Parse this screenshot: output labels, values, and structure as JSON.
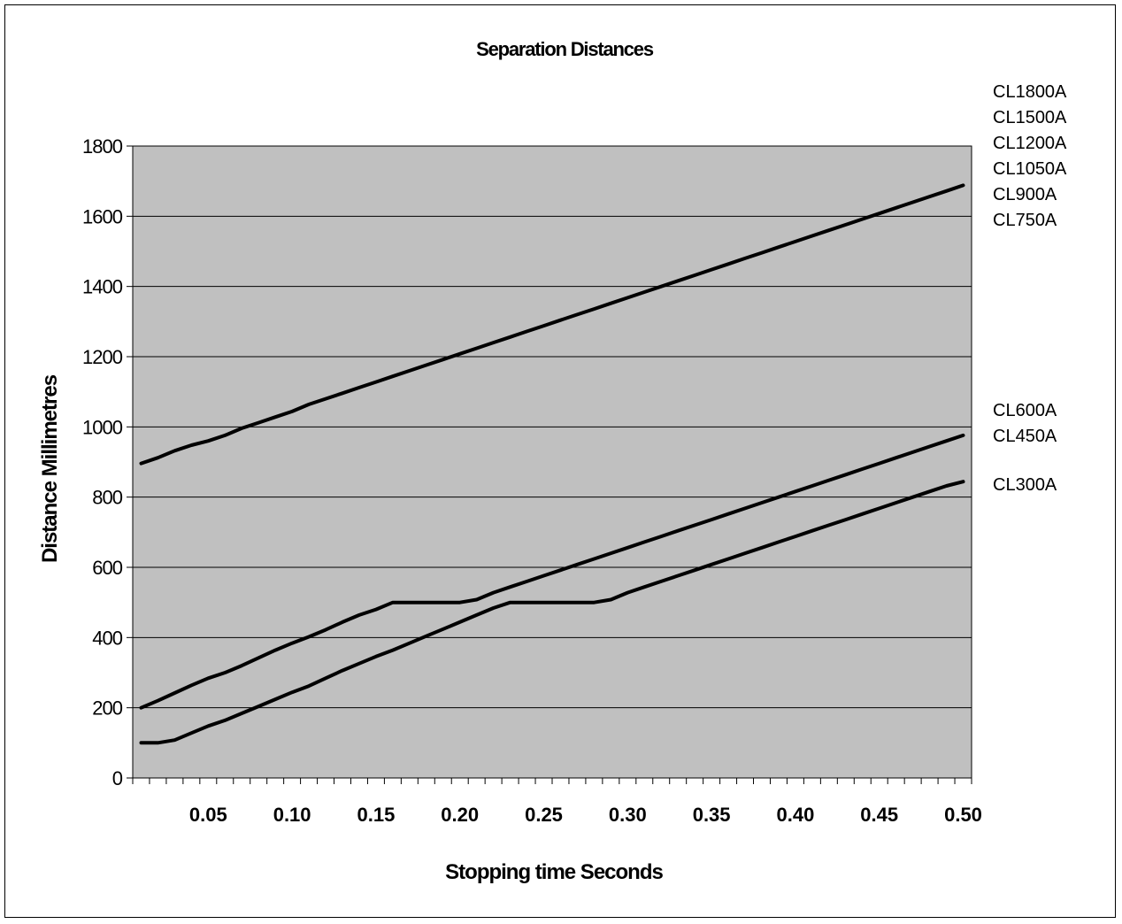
{
  "chart_data": {
    "type": "line",
    "title": "Separation Distances",
    "xlabel": "Stopping time Seconds",
    "ylabel": "Distance Millimetres",
    "xlim": [
      0.005,
      0.505
    ],
    "ylim": [
      0,
      1800
    ],
    "yticks": [
      0,
      200,
      400,
      600,
      800,
      1000,
      1200,
      1400,
      1600,
      1800
    ],
    "xticks": [
      0.05,
      0.1,
      0.15,
      0.2,
      0.25,
      0.3,
      0.35,
      0.4,
      0.45,
      0.5
    ],
    "xtick_labels": [
      "0.05",
      "0.10",
      "0.15",
      "0.20",
      "0.25",
      "0.30",
      "0.35",
      "0.40",
      "0.45",
      "0.50"
    ],
    "grid": "horizontal",
    "plot_background": "#c0c0c0",
    "line_color": "#000000",
    "legend_groups": [
      [
        "CL1800A",
        "CL1500A",
        "CL1200A",
        "CL1050A",
        "CL900A",
        "CL750A"
      ],
      [
        "CL600A",
        "CL450A"
      ],
      [
        "CL300A"
      ]
    ],
    "x": [
      0.01,
      0.02,
      0.03,
      0.04,
      0.05,
      0.06,
      0.07,
      0.08,
      0.09,
      0.1,
      0.11,
      0.12,
      0.13,
      0.14,
      0.15,
      0.16,
      0.17,
      0.18,
      0.19,
      0.2,
      0.21,
      0.22,
      0.23,
      0.24,
      0.25,
      0.26,
      0.27,
      0.28,
      0.29,
      0.3,
      0.31,
      0.32,
      0.33,
      0.34,
      0.35,
      0.36,
      0.37,
      0.38,
      0.39,
      0.4,
      0.41,
      0.42,
      0.43,
      0.44,
      0.45,
      0.46,
      0.47,
      0.48,
      0.49,
      0.5
    ],
    "series": [
      {
        "values": [
          896,
          912,
          932,
          948,
          960,
          976,
          996,
          1012,
          1028,
          1044,
          1064,
          1080,
          1096,
          1112,
          1128,
          1144,
          1160,
          1176,
          1192,
          1208,
          1224,
          1240,
          1256,
          1272,
          1288,
          1304,
          1320,
          1336,
          1352,
          1368,
          1384,
          1400,
          1416,
          1432,
          1448,
          1464,
          1480,
          1496,
          1512,
          1528,
          1544,
          1560,
          1576,
          1592,
          1608,
          1624,
          1640,
          1656,
          1672,
          1688
        ]
      },
      {
        "values": [
          200,
          220,
          242,
          264,
          284,
          300,
          320,
          342,
          364,
          384,
          402,
          422,
          444,
          464,
          480,
          500,
          500,
          500,
          500,
          500,
          508,
          528,
          544,
          560,
          576,
          592,
          608,
          624,
          640,
          656,
          672,
          688,
          704,
          720,
          736,
          752,
          768,
          784,
          800,
          816,
          832,
          848,
          864,
          880,
          896,
          912,
          928,
          944,
          960,
          976
        ]
      },
      {
        "values": [
          100,
          100,
          108,
          128,
          148,
          164,
          184,
          204,
          224,
          244,
          262,
          284,
          306,
          326,
          346,
          364,
          384,
          404,
          424,
          444,
          464,
          484,
          500,
          500,
          500,
          500,
          500,
          500,
          508,
          528,
          544,
          560,
          576,
          592,
          608,
          624,
          640,
          656,
          672,
          688,
          704,
          720,
          736,
          752,
          768,
          784,
          800,
          816,
          832,
          844
        ]
      }
    ]
  }
}
